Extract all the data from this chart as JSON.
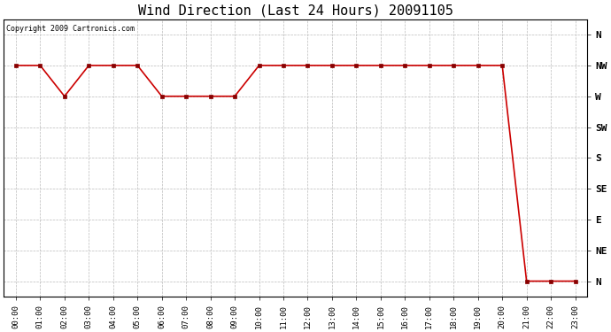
{
  "title": "Wind Direction (Last 24 Hours) 20091105",
  "copyright_text": "Copyright 2009 Cartronics.com",
  "background_color": "#ffffff",
  "grid_color": "#bbbbbb",
  "line_color": "#cc0000",
  "marker_color": "#880000",
  "ytick_labels": [
    "N",
    "NW",
    "W",
    "SW",
    "S",
    "SE",
    "E",
    "NE",
    "N"
  ],
  "ytick_positions": [
    8,
    7,
    6,
    5,
    4,
    3,
    2,
    1,
    0
  ],
  "hours": [
    "00:00",
    "01:00",
    "02:00",
    "03:00",
    "04:00",
    "05:00",
    "06:00",
    "07:00",
    "08:00",
    "09:00",
    "10:00",
    "11:00",
    "12:00",
    "13:00",
    "14:00",
    "15:00",
    "16:00",
    "17:00",
    "18:00",
    "19:00",
    "20:00",
    "21:00",
    "22:00",
    "23:00"
  ],
  "x_values": [
    0,
    1,
    2,
    3,
    4,
    5,
    6,
    7,
    8,
    9,
    10,
    11,
    12,
    13,
    14,
    15,
    16,
    17,
    18,
    19,
    20,
    21,
    22,
    23
  ],
  "y_values": [
    7,
    7,
    6,
    7,
    7,
    7,
    6,
    6,
    6,
    6,
    7,
    7,
    7,
    7,
    7,
    7,
    7,
    7,
    7,
    7,
    7,
    0,
    0,
    0
  ],
  "xlim": [
    -0.5,
    23.5
  ],
  "ylim": [
    -0.5,
    8.5
  ],
  "title_fontsize": 11,
  "copyright_fontsize": 6,
  "xtick_fontsize": 6.5,
  "ytick_fontsize": 8
}
